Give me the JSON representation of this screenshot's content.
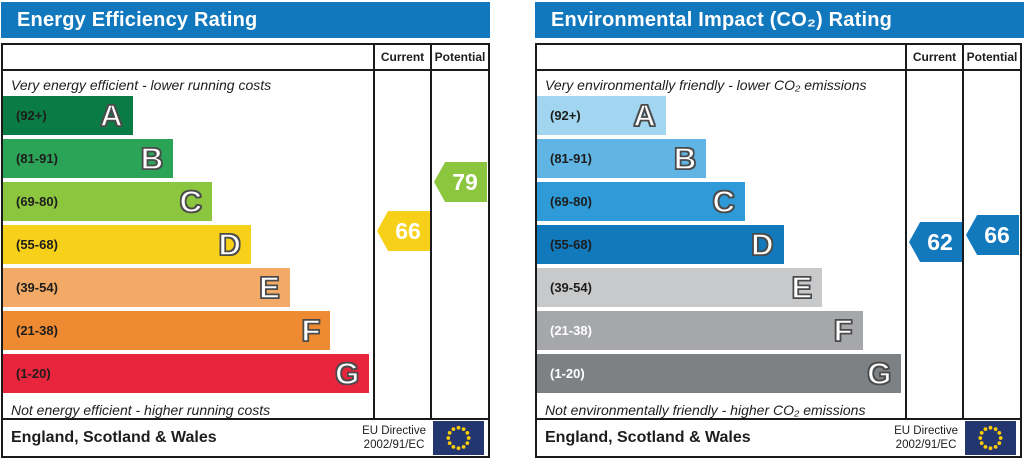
{
  "chart_data": [
    {
      "type": "bar",
      "title": "Energy Efficiency Rating",
      "columns": [
        "Current",
        "Potential"
      ],
      "top_note": "Very energy efficient - lower running costs",
      "bottom_note": "Not energy efficient - higher running costs",
      "bands": [
        {
          "letter": "A",
          "range": "(92+)",
          "color": "#0b7b45",
          "label_color": "#1d1d1b",
          "width_pct": 35
        },
        {
          "letter": "B",
          "range": "(81-91)",
          "color": "#2ba458",
          "label_color": "#1d1d1b",
          "width_pct": 46
        },
        {
          "letter": "C",
          "range": "(69-80)",
          "color": "#8cc63f",
          "label_color": "#1d1d1b",
          "width_pct": 56.5
        },
        {
          "letter": "D",
          "range": "(55-68)",
          "color": "#f6d019",
          "label_color": "#1d1d1b",
          "width_pct": 67
        },
        {
          "letter": "E",
          "range": "(39-54)",
          "color": "#f2aa66",
          "label_color": "#1d1d1b",
          "width_pct": 77.5
        },
        {
          "letter": "F",
          "range": "(21-38)",
          "color": "#ee8a32",
          "label_color": "#1d1d1b",
          "width_pct": 88.5
        },
        {
          "letter": "G",
          "range": "(1-20)",
          "color": "#e9253d",
          "label_color": "#1d1d1b",
          "width_pct": 99
        }
      ],
      "current": {
        "value": "66",
        "color": "#f6d019"
      },
      "potential": {
        "value": "79",
        "color": "#8cc63f"
      },
      "footer": {
        "region": "England, Scotland & Wales",
        "directive_line1": "EU Directive",
        "directive_line2": "2002/91/EC"
      }
    },
    {
      "type": "bar",
      "title": "Environmental Impact (CO₂) Rating",
      "columns": [
        "Current",
        "Potential"
      ],
      "top_note": "Very environmentally friendly - lower CO₂ emissions",
      "bottom_note": "Not environmentally friendly - higher CO₂ emissions",
      "bands": [
        {
          "letter": "A",
          "range": "(92+)",
          "color": "#a2d6f0",
          "label_color": "#1d1d1b",
          "width_pct": 35
        },
        {
          "letter": "B",
          "range": "(81-91)",
          "color": "#60b5e5",
          "label_color": "#1d1d1b",
          "width_pct": 46
        },
        {
          "letter": "C",
          "range": "(69-80)",
          "color": "#2e9ad7",
          "label_color": "#1d1d1b",
          "width_pct": 56.5
        },
        {
          "letter": "D",
          "range": "(55-68)",
          "color": "#1379bd",
          "label_color": "#1d1d1b",
          "width_pct": 67
        },
        {
          "letter": "E",
          "range": "(39-54)",
          "color": "#c8c9cb",
          "label_color": "#1d1d1b",
          "width_pct": 77.5
        },
        {
          "letter": "F",
          "range": "(21-38)",
          "color": "#a5a7aa",
          "label_color": "#ffffff",
          "width_pct": 88.5
        },
        {
          "letter": "G",
          "range": "(1-20)",
          "color": "#7e8184",
          "label_color": "#ffffff",
          "width_pct": 99
        }
      ],
      "current": {
        "value": "62",
        "color": "#1379bd"
      },
      "potential": {
        "value": "66",
        "color": "#1379bd"
      },
      "footer": {
        "region": "England, Scotland & Wales",
        "directive_line1": "EU Directive",
        "directive_line2": "2002/91/EC"
      }
    }
  ],
  "colors": {
    "header_blue": "#1278be",
    "border": "#1a1a1a",
    "flag_navy": "#23366f",
    "flag_star": "#ffcc00"
  }
}
